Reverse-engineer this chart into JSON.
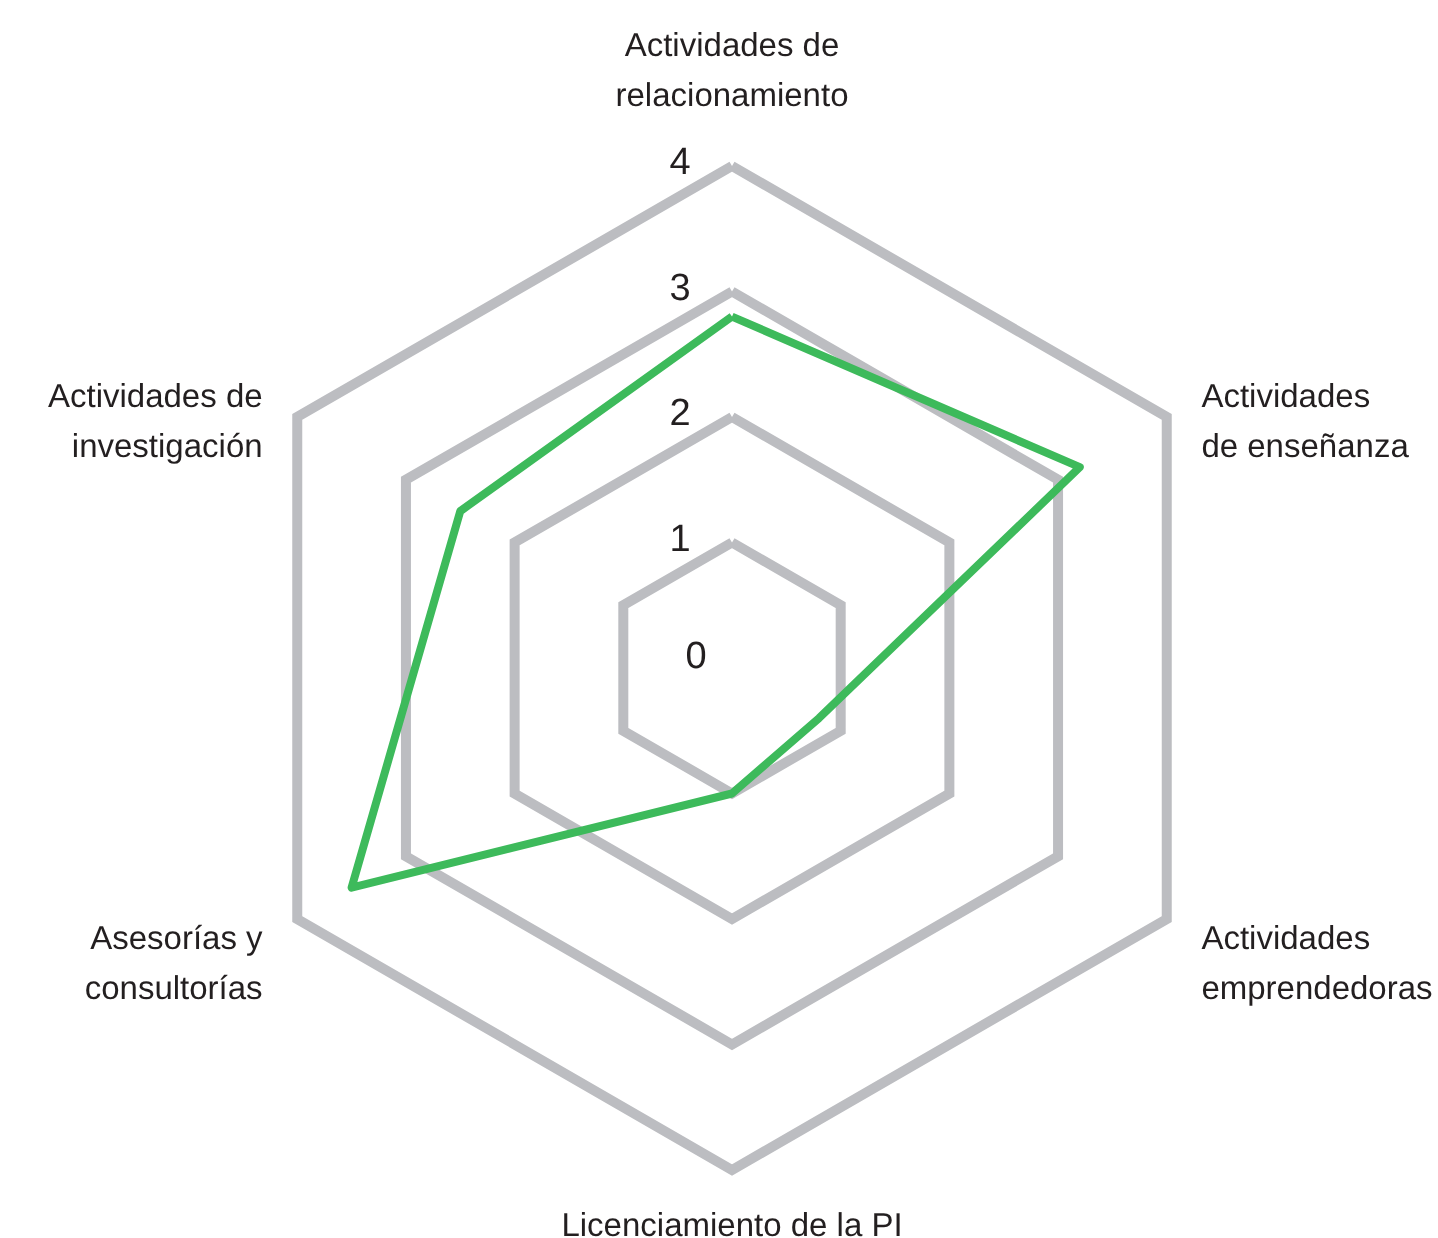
{
  "chart_data": {
    "type": "radar",
    "categories": [
      "Actividades de relacionamiento",
      "Actividades de enseñanza",
      "Actividades emprendedoras",
      "Licenciamiento de la PI",
      "Asesorías y consultorías",
      "Actividades de investigación"
    ],
    "series": [
      {
        "color": "#3dba5b",
        "values": [
          2.8,
          3.2,
          0.8,
          1.0,
          3.5,
          2.5
        ]
      }
    ],
    "ylim": [
      0,
      4
    ],
    "yticks": [
      0,
      1,
      2,
      3,
      4
    ],
    "grid": true
  }
}
